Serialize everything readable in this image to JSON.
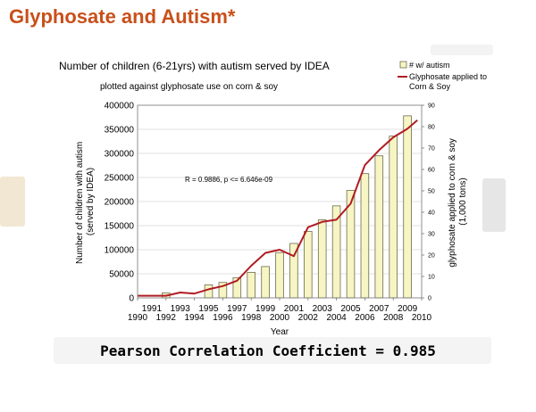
{
  "slide": {
    "title": "Glyphosate and Autism*",
    "footer": "Pearson Correlation Coefficient = 0.985"
  },
  "colors": {
    "title": "#c8501a",
    "bar_fill": "#f7f5c3",
    "bar_stroke": "#6b6b50",
    "line": "#b01c22"
  },
  "chart_data": {
    "type": "bar",
    "title": "Number of children (6-21yrs) with autism served by IDEA",
    "subtitle": "plotted against glyphosate use on corn & soy",
    "xlabel": "Year",
    "ylabel_lines": [
      "Number of children with autism",
      "(served by IDEA)"
    ],
    "y2label_lines": [
      "glyphosate applied to corn & soy",
      "(1,000 tons)"
    ],
    "annotation": "R = 0.9886, p <= 6.646e-09",
    "xlim": [
      1990,
      2010
    ],
    "ylim": [
      0,
      400000
    ],
    "y2lim": [
      0,
      90
    ],
    "x_ticks_top": [
      "1991",
      "1993",
      "1995",
      "1997",
      "1999",
      "2001",
      "2003",
      "2005",
      "2007",
      "2009"
    ],
    "x_ticks_bottom": [
      "1990",
      "1992",
      "1994",
      "1996",
      "1998",
      "2000",
      "2002",
      "2004",
      "2006",
      "2008",
      "2010"
    ],
    "y_ticks": [
      "0",
      "50000",
      "100000",
      "150000",
      "200000",
      "250000",
      "300000",
      "350000",
      "400000"
    ],
    "y2_ticks": [
      "0",
      "10",
      "20",
      "30",
      "40",
      "50",
      "60",
      "70",
      "80",
      "90"
    ],
    "grid": true,
    "legend_position": "top-right",
    "series": [
      {
        "name": "# w/ autism",
        "type": "bar",
        "x": [
          1992,
          1995,
          1996,
          1997,
          1998,
          1999,
          2000,
          2001,
          2002,
          2003,
          2004,
          2005,
          2006,
          2007,
          2008,
          2009
        ],
        "values": [
          10000,
          27000,
          32000,
          42000,
          53000,
          65000,
          94000,
          113000,
          138000,
          162000,
          191000,
          223000,
          258000,
          295000,
          336000,
          378000
        ]
      },
      {
        "name": "Glyphosate applied to Corn & Soy",
        "type": "line",
        "x": [
          1990,
          1991,
          1992,
          1993,
          1994,
          1995,
          1996,
          1997,
          1998,
          1999,
          2000,
          2001,
          2002,
          2003,
          2004,
          2005,
          2006,
          2007,
          2008,
          2009,
          2009.7
        ],
        "values": [
          1,
          1,
          1,
          2.5,
          2,
          4,
          5.5,
          8,
          15,
          21,
          22.5,
          19.5,
          33,
          35.5,
          36.5,
          44,
          62,
          69,
          75,
          79,
          83
        ]
      }
    ]
  }
}
